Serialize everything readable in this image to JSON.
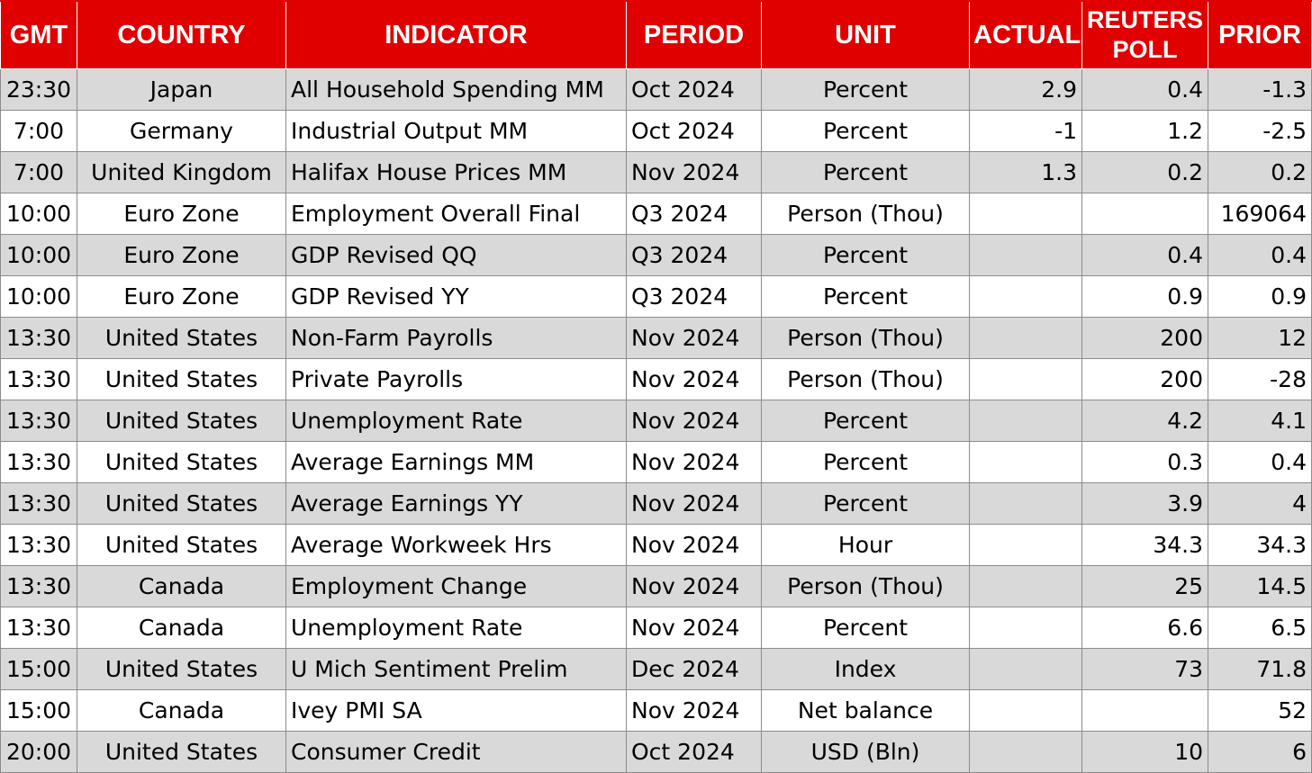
{
  "headers": {
    "gmt": "GMT",
    "country": "COUNTRY",
    "indicator": "INDICATOR",
    "period": "PERIOD",
    "unit": "UNIT",
    "actual": "ACTUAL",
    "poll_line1": "REUTERS",
    "poll_line2": "POLL",
    "prior": "PRIOR"
  },
  "rows": [
    {
      "gmt": "23:30",
      "country": "Japan",
      "indicator": "All Household Spending MM",
      "period": "Oct 2024",
      "unit": "Percent",
      "actual": "2.9",
      "poll": "0.4",
      "prior": "-1.3"
    },
    {
      "gmt": "7:00",
      "country": "Germany",
      "indicator": "Industrial Output MM",
      "period": "Oct 2024",
      "unit": "Percent",
      "actual": "-1",
      "poll": "1.2",
      "prior": "-2.5"
    },
    {
      "gmt": "7:00",
      "country": "United Kingdom",
      "indicator": "Halifax House Prices MM",
      "period": "Nov 2024",
      "unit": "Percent",
      "actual": "1.3",
      "poll": "0.2",
      "prior": "0.2"
    },
    {
      "gmt": "10:00",
      "country": "Euro Zone",
      "indicator": "Employment Overall Final",
      "period": "Q3 2024",
      "unit": "Person (Thou)",
      "actual": "",
      "poll": "",
      "prior": "169064"
    },
    {
      "gmt": "10:00",
      "country": "Euro Zone",
      "indicator": "GDP Revised QQ",
      "period": "Q3 2024",
      "unit": "Percent",
      "actual": "",
      "poll": "0.4",
      "prior": "0.4"
    },
    {
      "gmt": "10:00",
      "country": "Euro Zone",
      "indicator": "GDP Revised YY",
      "period": "Q3 2024",
      "unit": "Percent",
      "actual": "",
      "poll": "0.9",
      "prior": "0.9"
    },
    {
      "gmt": "13:30",
      "country": "United States",
      "indicator": "Non-Farm Payrolls",
      "period": "Nov 2024",
      "unit": "Person (Thou)",
      "actual": "",
      "poll": "200",
      "prior": "12"
    },
    {
      "gmt": "13:30",
      "country": "United States",
      "indicator": "Private Payrolls",
      "period": "Nov 2024",
      "unit": "Person (Thou)",
      "actual": "",
      "poll": "200",
      "prior": "-28"
    },
    {
      "gmt": "13:30",
      "country": "United States",
      "indicator": "Unemployment Rate",
      "period": "Nov 2024",
      "unit": "Percent",
      "actual": "",
      "poll": "4.2",
      "prior": "4.1"
    },
    {
      "gmt": "13:30",
      "country": "United States",
      "indicator": "Average Earnings MM",
      "period": "Nov 2024",
      "unit": "Percent",
      "actual": "",
      "poll": "0.3",
      "prior": "0.4"
    },
    {
      "gmt": "13:30",
      "country": "United States",
      "indicator": "Average Earnings YY",
      "period": "Nov 2024",
      "unit": "Percent",
      "actual": "",
      "poll": "3.9",
      "prior": "4"
    },
    {
      "gmt": "13:30",
      "country": "United States",
      "indicator": "Average Workweek Hrs",
      "period": "Nov 2024",
      "unit": "Hour",
      "actual": "",
      "poll": "34.3",
      "prior": "34.3"
    },
    {
      "gmt": "13:30",
      "country": "Canada",
      "indicator": "Employment Change",
      "period": "Nov 2024",
      "unit": "Person (Thou)",
      "actual": "",
      "poll": "25",
      "prior": "14.5"
    },
    {
      "gmt": "13:30",
      "country": "Canada",
      "indicator": "Unemployment Rate",
      "period": "Nov 2024",
      "unit": "Percent",
      "actual": "",
      "poll": "6.6",
      "prior": "6.5"
    },
    {
      "gmt": "15:00",
      "country": "United States",
      "indicator": "U Mich Sentiment Prelim",
      "period": "Dec 2024",
      "unit": "Index",
      "actual": "",
      "poll": "73",
      "prior": "71.8"
    },
    {
      "gmt": "15:00",
      "country": "Canada",
      "indicator": "Ivey PMI SA",
      "period": "Nov 2024",
      "unit": "Net balance",
      "actual": "",
      "poll": "",
      "prior": "52"
    },
    {
      "gmt": "20:00",
      "country": "United States",
      "indicator": "Consumer Credit",
      "period": "Oct 2024",
      "unit": "USD (Bln)",
      "actual": "",
      "poll": "10",
      "prior": "6"
    }
  ],
  "colors": {
    "header_bg": "#e00000",
    "header_text": "#ffffff",
    "row_shaded": "#d9d9d9",
    "row_plain": "#ffffff",
    "grid": "#8c8c8c"
  }
}
